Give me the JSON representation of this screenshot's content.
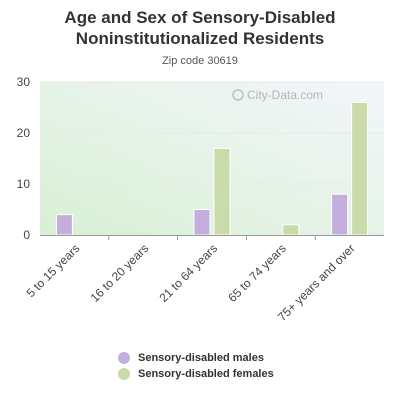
{
  "header": {
    "title_line1": "Age and Sex of Sensory-Disabled",
    "title_line2": "Noninstitutionalized Residents",
    "subtitle": "Zip code 30619"
  },
  "watermark": "City-Data.com",
  "colors": {
    "males": "#c4aedd",
    "females": "#c9dba9",
    "text": "#333333",
    "axis": "#999999"
  },
  "chart_data": {
    "type": "bar",
    "title": "Age and Sex of Sensory-Disabled Noninstitutionalized Residents",
    "subtitle": "Zip code 30619",
    "categories": [
      "5 to 15 years",
      "16 to 20 years",
      "21 to 64 years",
      "65 to 74 years",
      "75+ years and over"
    ],
    "series": [
      {
        "name": "Sensory-disabled males",
        "values": [
          4,
          0,
          5,
          0,
          8
        ]
      },
      {
        "name": "Sensory-disabled females",
        "values": [
          0,
          0,
          17,
          2,
          26
        ]
      }
    ],
    "yticks": [
      0,
      10,
      20,
      30
    ],
    "ylim": [
      0,
      30
    ],
    "xlabel": "",
    "ylabel": "",
    "grid": true,
    "legend": "bottom"
  }
}
